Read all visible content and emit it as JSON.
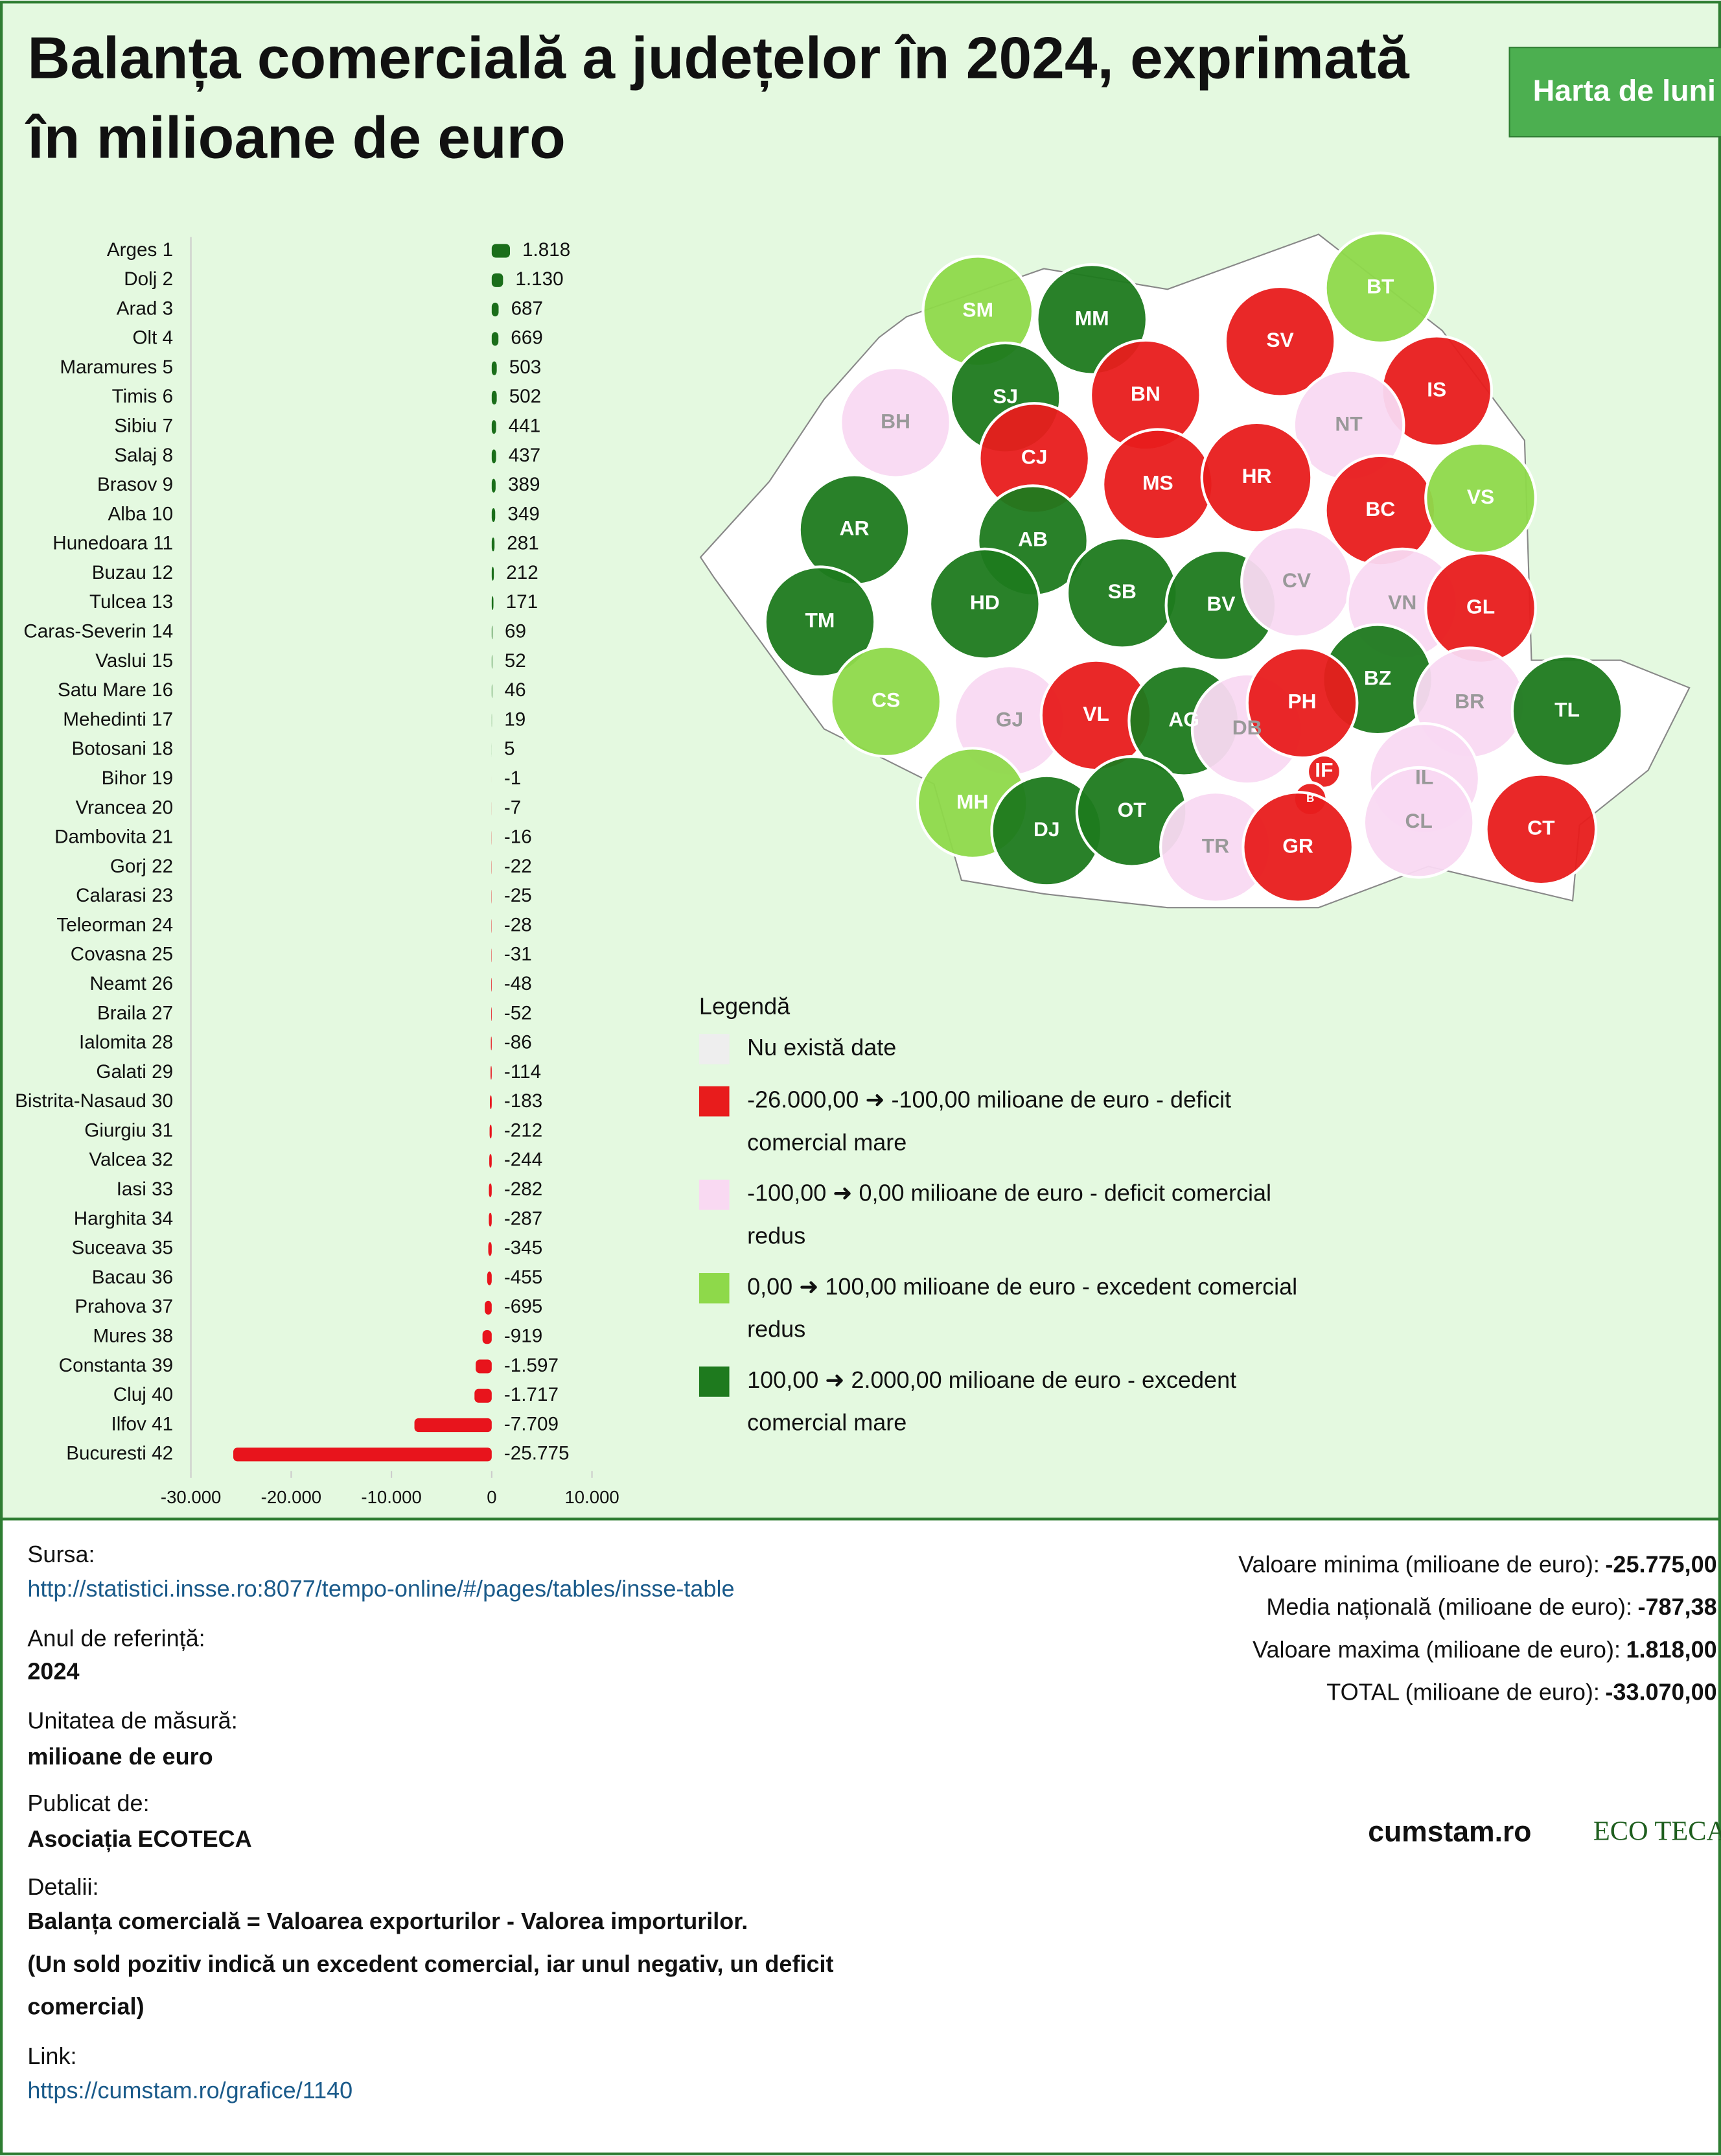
{
  "header": {
    "title": [
      "Balanța comercială a județelor în 2024, exprimată",
      "în milioane de euro"
    ],
    "button": "Harta de luni"
  },
  "chart_data": {
    "type": "bar",
    "orientation": "horizontal",
    "categories": [
      "Arges 1",
      "Dolj 2",
      "Arad 3",
      "Olt 4",
      "Maramures 5",
      "Timis 6",
      "Sibiu 7",
      "Salaj 8",
      "Brasov 9",
      "Alba 10",
      "Hunedoara 11",
      "Buzau 12",
      "Tulcea 13",
      "Caras-Severin 14",
      "Vaslui 15",
      "Satu Mare 16",
      "Mehedinti 17",
      "Botosani 18",
      "Bihor 19",
      "Vrancea 20",
      "Dambovita 21",
      "Gorj 22",
      "Calarasi 23",
      "Teleorman 24",
      "Covasna 25",
      "Neamt 26",
      "Braila 27",
      "Ialomita 28",
      "Galati 29",
      "Bistrita-Nasaud 30",
      "Giurgiu 31",
      "Valcea 32",
      "Iasi 33",
      "Harghita 34",
      "Suceava 35",
      "Bacau 36",
      "Prahova 37",
      "Mures 38",
      "Constanta 39",
      "Cluj 40",
      "Ilfov 41",
      "Bucuresti 42"
    ],
    "values": [
      1818,
      1130,
      687,
      669,
      503,
      502,
      441,
      437,
      389,
      349,
      281,
      212,
      171,
      69,
      52,
      46,
      19,
      5,
      -1,
      -7,
      -16,
      -22,
      -25,
      -28,
      -31,
      -48,
      -52,
      -86,
      -114,
      -183,
      -212,
      -244,
      -282,
      -287,
      -345,
      -455,
      -695,
      -919,
      -1597,
      -1717,
      -7709,
      -25775
    ],
    "value_labels": [
      "1.818",
      "1.130",
      "687",
      "669",
      "503",
      "502",
      "441",
      "437",
      "389",
      "349",
      "281",
      "212",
      "171",
      "69",
      "52",
      "46",
      "19",
      "5",
      "-1",
      "-7",
      "-16",
      "-22",
      "-25",
      "-28",
      "-31",
      "-48",
      "-52",
      "-86",
      "-114",
      "-183",
      "-212",
      "-244",
      "-282",
      "-287",
      "-345",
      "-455",
      "-695",
      "-919",
      "-1.597",
      "-1.717",
      "-7.709",
      "-25.775"
    ],
    "positive_color": "#1a6e1a",
    "negative_color": "#e8141c",
    "xlim": [
      -30000,
      10000
    ],
    "xticks": [
      {
        "value": -30000,
        "label": "-30.000"
      },
      {
        "value": -20000,
        "label": "-20.000"
      },
      {
        "value": -10000,
        "label": "-10.000"
      },
      0,
      {
        "value": 10000,
        "label": "10.000"
      }
    ]
  },
  "map": {
    "counties": [
      {
        "code": "SM",
        "color": "#8ed94a"
      },
      {
        "code": "MM",
        "color": "#1e7a1e"
      },
      {
        "code": "BT",
        "color": "#8ed94a"
      },
      {
        "code": "SV",
        "color": "#e81c1c"
      },
      {
        "code": "SJ",
        "color": "#1e7a1e"
      },
      {
        "code": "BN",
        "color": "#e81c1c"
      },
      {
        "code": "IS",
        "color": "#e81c1c"
      },
      {
        "code": "BH",
        "color": "#f9d9f2"
      },
      {
        "code": "CJ",
        "color": "#e81c1c"
      },
      {
        "code": "NT",
        "color": "#f9d9f2"
      },
      {
        "code": "MS",
        "color": "#e81c1c"
      },
      {
        "code": "HR",
        "color": "#e81c1c"
      },
      {
        "code": "BC",
        "color": "#e81c1c"
      },
      {
        "code": "VS",
        "color": "#8ed94a"
      },
      {
        "code": "AR",
        "color": "#1e7a1e"
      },
      {
        "code": "AB",
        "color": "#1e7a1e"
      },
      {
        "code": "SB",
        "color": "#1e7a1e"
      },
      {
        "code": "HD",
        "color": "#1e7a1e"
      },
      {
        "code": "BV",
        "color": "#1e7a1e"
      },
      {
        "code": "CV",
        "color": "#f9d9f2"
      },
      {
        "code": "VN",
        "color": "#f9d9f2"
      },
      {
        "code": "GL",
        "color": "#e81c1c"
      },
      {
        "code": "TM",
        "color": "#1e7a1e"
      },
      {
        "code": "BZ",
        "color": "#1e7a1e"
      },
      {
        "code": "BR",
        "color": "#f9d9f2"
      },
      {
        "code": "TL",
        "color": "#1e7a1e"
      },
      {
        "code": "CS",
        "color": "#8ed94a"
      },
      {
        "code": "GJ",
        "color": "#f9d9f2"
      },
      {
        "code": "VL",
        "color": "#e81c1c"
      },
      {
        "code": "AG",
        "color": "#1e7a1e"
      },
      {
        "code": "DB",
        "color": "#f9d9f2"
      },
      {
        "code": "PH",
        "color": "#e81c1c"
      },
      {
        "code": "IF",
        "color": "#e81c1c"
      },
      {
        "code": "B",
        "color": "#e81c1c"
      },
      {
        "code": "IL",
        "color": "#f9d9f2"
      },
      {
        "code": "MH",
        "color": "#8ed94a"
      },
      {
        "code": "DJ",
        "color": "#1e7a1e"
      },
      {
        "code": "OT",
        "color": "#1e7a1e"
      },
      {
        "code": "TR",
        "color": "#f9d9f2"
      },
      {
        "code": "GR",
        "color": "#e81c1c"
      },
      {
        "code": "CL",
        "color": "#f9d9f2"
      },
      {
        "code": "CT",
        "color": "#e81c1c"
      }
    ]
  },
  "legend": {
    "title": "Legendă",
    "items": [
      {
        "color": "#eeeeee",
        "lines": [
          "Nu există date"
        ]
      },
      {
        "color": "#e81c1c",
        "lines": [
          "-26.000,00 ➜ -100,00 milioane de euro - deficit",
          "comercial mare"
        ]
      },
      {
        "color": "#f9d9f2",
        "lines": [
          "-100,00 ➜ 0,00 milioane de euro - deficit comercial",
          "redus"
        ]
      },
      {
        "color": "#8ed94a",
        "lines": [
          "0,00 ➜ 100,00 milioane de euro - excedent comercial",
          "redus"
        ]
      },
      {
        "color": "#1e7a1e",
        "lines": [
          "100,00 ➜ 2.000,00 milioane de euro - excedent",
          "comercial mare"
        ]
      }
    ]
  },
  "footer": {
    "source_label": "Sursa:",
    "source_url": "http://statistici.insse.ro:8077/tempo-online/#/pages/tables/insse-table",
    "year_label": "Anul de referință:",
    "year": "2024",
    "unit_label": "Unitatea de măsură:",
    "unit": "milioane de euro",
    "publisher_label": "Publicat de:",
    "publisher": "Asociația ECOTECA",
    "details_label": "Detalii:",
    "details": [
      "Balanța comercială = Valoarea exporturilor - Valorea importurilor.",
      "(Un sold pozitiv indică un excedent comercial, iar unul negativ, un deficit",
      "comercial)"
    ],
    "link_label": "Link:",
    "link": "https://cumstam.ro/grafice/1140",
    "stats": [
      {
        "label": "Valoare minima (milioane de euro):",
        "value": "-25.775,00"
      },
      {
        "label": "Media națională (milioane de euro):",
        "value": "-787,38"
      },
      {
        "label": "Valoare maxima (milioane de euro):",
        "value": "1.818,00"
      },
      {
        "label": "TOTAL (milioane de euro):",
        "value": "-33.070,00"
      }
    ],
    "logos": [
      "cumstam.ro",
      "ECO TECA"
    ]
  }
}
